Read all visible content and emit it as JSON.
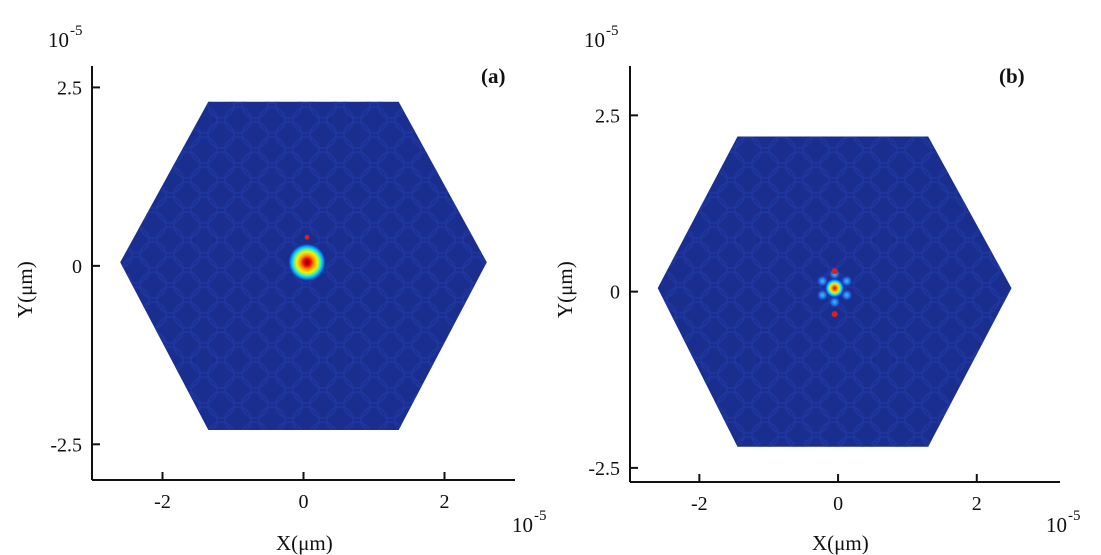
{
  "chart_data": [
    {
      "type": "heatmap",
      "panel_label": "(a)",
      "xlabel": "X(μm)",
      "ylabel": "Y(μm)",
      "x_exponent": "10",
      "x_exponent_power": "-5",
      "y_exponent": "10",
      "y_exponent_power": "-5",
      "xlim": [
        -3,
        3
      ],
      "ylim": [
        -3,
        2.8
      ],
      "xticks": [
        -2,
        0,
        2
      ],
      "yticks": [
        2.5,
        0,
        -2.5
      ],
      "xtick_labels": [
        "-2",
        "0",
        "2"
      ],
      "ytick_labels": [
        "2.5",
        "0",
        "-2.5"
      ],
      "hexagon_vertices": [
        [
          -2.6,
          0.05
        ],
        [
          -1.35,
          2.3
        ],
        [
          1.35,
          2.3
        ],
        [
          2.6,
          0.05
        ],
        [
          1.35,
          -2.3
        ],
        [
          -1.35,
          -2.3
        ]
      ],
      "background_color": "#1a2e8f",
      "mode_center": [
        0.05,
        0.05
      ],
      "mode_pattern": "single lobe",
      "grid": false
    },
    {
      "type": "heatmap",
      "panel_label": "(b)",
      "xlabel": "X(μm)",
      "ylabel": "Y(μm)",
      "x_exponent": "10",
      "x_exponent_power": "-5",
      "y_exponent": "10",
      "y_exponent_power": "-5",
      "xlim": [
        -3,
        3.2
      ],
      "ylim": [
        -2.7,
        3.2
      ],
      "xticks": [
        -2,
        0,
        2
      ],
      "yticks": [
        2.5,
        0,
        -2.5
      ],
      "xtick_labels": [
        "-2",
        "0",
        "2"
      ],
      "ytick_labels": [
        "2.5",
        "0",
        "-2.5"
      ],
      "hexagon_vertices": [
        [
          -2.6,
          0.05
        ],
        [
          -1.45,
          2.2
        ],
        [
          1.3,
          2.2
        ],
        [
          2.5,
          0.05
        ],
        [
          1.3,
          -2.2
        ],
        [
          -1.45,
          -2.2
        ]
      ],
      "background_color": "#1a2e8f",
      "mode_center": [
        -0.05,
        0.05
      ],
      "mode_pattern": "central lobe with hexagonal ring",
      "grid": false
    }
  ]
}
